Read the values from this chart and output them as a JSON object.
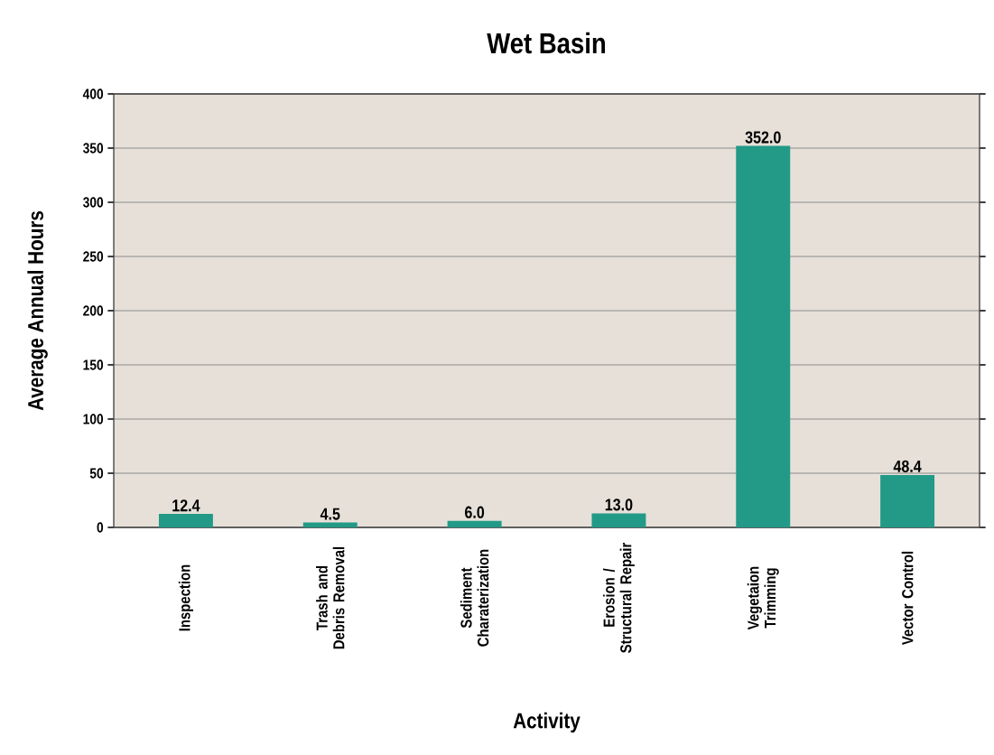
{
  "chart_data": {
    "type": "bar",
    "title": "Wet Basin",
    "xlabel": "Activity",
    "ylabel": "Average Annual Hours",
    "categories": [
      "Inspection",
      "Trash and Debris Removal",
      "Sediment Charaterization",
      "Erosion / Structural Repair",
      "Vegetaion Trimming",
      "Vector Control"
    ],
    "values": [
      12.4,
      4.5,
      6.0,
      13.0,
      352.0,
      48.4
    ],
    "color": "#229a87",
    "ylim": [
      0,
      400
    ],
    "yticks": [
      0,
      50,
      100,
      150,
      200,
      250,
      300,
      350,
      400
    ],
    "value_labels": [
      "12.4",
      "4.5",
      "6.0",
      "13.0",
      "352.0",
      "48.4"
    ],
    "grid": "y"
  }
}
